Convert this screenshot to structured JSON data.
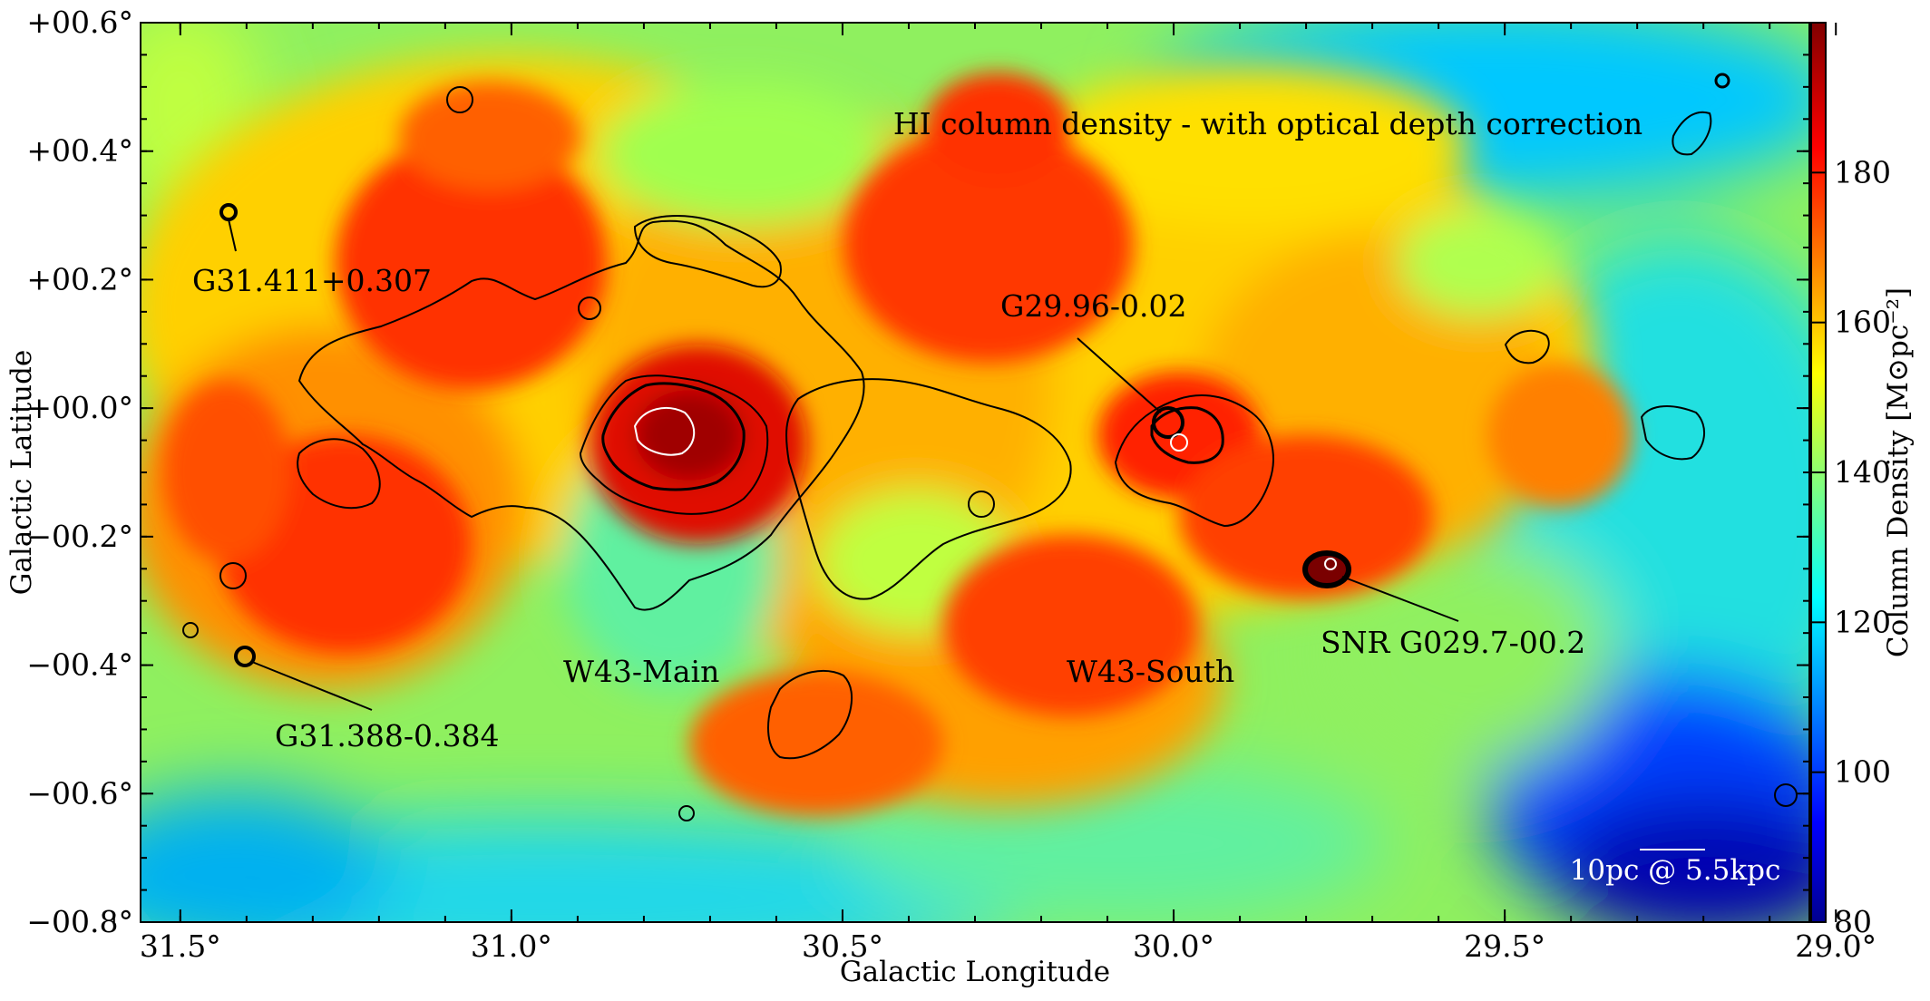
{
  "figure": {
    "title": "HI column density - with optical depth correction",
    "xlabel": "Galactic Longitude",
    "ylabel": "Galactic Latitude",
    "colorbar_label": "Column Density [M⊙pc⁻²]",
    "colorbar_ticks": [
      "80",
      "100",
      "120",
      "140",
      "160",
      "180"
    ],
    "colorbar_range": [
      80,
      200
    ],
    "colormap": "jet",
    "x_ticks": [
      "31.5°",
      "31.0°",
      "30.5°",
      "30.0°",
      "29.5°",
      "29.0°"
    ],
    "x_tick_values": [
      31.5,
      31.0,
      30.5,
      30.0,
      29.5,
      29.0
    ],
    "x_range": [
      31.56,
      29.04
    ],
    "y_ticks": [
      "+00.6°",
      "+00.4°",
      "+00.2°",
      "+00.0°",
      "−00.2°",
      "−00.4°",
      "−00.6°",
      "−00.8°"
    ],
    "y_tick_values": [
      0.6,
      0.4,
      0.2,
      0.0,
      -0.2,
      -0.4,
      -0.6,
      -0.8
    ],
    "y_range": [
      -0.8,
      0.6
    ],
    "scalebar_label": "10pc @ 5.5kpc"
  },
  "annotations": [
    {
      "label": "G31.411+0.307",
      "l": 31.411,
      "b": 0.307
    },
    {
      "label": "G29.96-0.02",
      "l": 29.96,
      "b": -0.02
    },
    {
      "label": "SNR G029.7-00.2",
      "l": 29.7,
      "b": -0.25
    },
    {
      "label": "G31.388-0.384",
      "l": 31.388,
      "b": -0.384
    },
    {
      "label": "W43-Main",
      "l": 30.8,
      "b": -0.05
    },
    {
      "label": "W43-South",
      "l": 30.0,
      "b": -0.1
    }
  ],
  "colors": {
    "jet_low": "#00008f",
    "jet_cyan": "#00ffff",
    "jet_yellow": "#ffff00",
    "jet_high": "#800000",
    "contour_black": "#000000",
    "contour_white": "#ffffff"
  }
}
